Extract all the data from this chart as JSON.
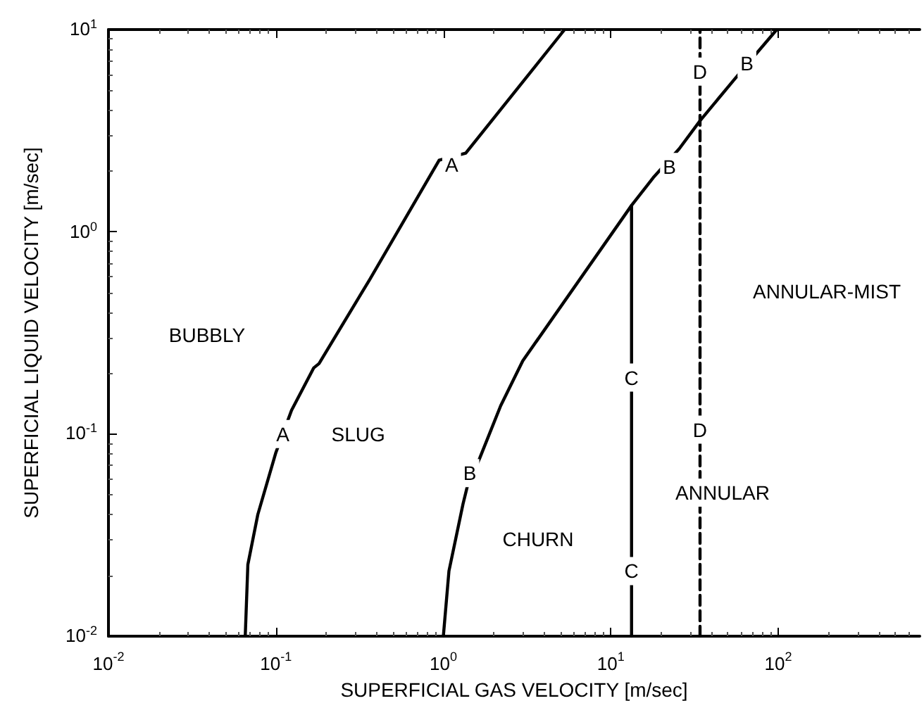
{
  "chart_data": {
    "type": "line",
    "xlabel": "SUPERFICIAL GAS VELOCITY [m/sec]",
    "ylabel": "SUPERFICIAL LIQUID VELOCITY [m/sec]",
    "log": "xy",
    "grid": false,
    "marker": "none",
    "xlim": [
      0.01,
      700
    ],
    "xticks": [
      {
        "value": 0.01,
        "label": "10$^{-2}$"
      },
      {
        "value": 0.1,
        "label": "10$^{-1}$"
      },
      {
        "value": 1,
        "label": "10$^{0}$"
      },
      {
        "value": 10,
        "label": "10$^{1}$"
      },
      {
        "value": 100,
        "label": "10$^{2}$"
      }
    ],
    "ylim": [
      0.01,
      10
    ],
    "yticks": [
      {
        "value": 0.01,
        "label": "10$^{-2}$"
      },
      {
        "value": 0.1,
        "label": "10$^{-1}$"
      },
      {
        "value": 1,
        "label": "10$^{0}$"
      },
      {
        "value": 10,
        "label": "10$^{1}$"
      }
    ],
    "series": [
      {
        "color": "#000000",
        "line_style": "solid",
        "x": [
          0.0656,
          0.068,
          0.078,
          0.1,
          0.124,
          0.168,
          0.181,
          0.363,
          0.944,
          1.36,
          5.3
        ],
        "values": [
          0.01,
          0.0226,
          0.04,
          0.081,
          0.131,
          0.212,
          0.223,
          0.58,
          2.26,
          2.45,
          10
        ]
      },
      {
        "color": "#000000",
        "line_style": "solid",
        "x": [
          1.0,
          1.08,
          1.31,
          1.39,
          1.65,
          2.2,
          2.98,
          13.3,
          18.1,
          25.6,
          34.1,
          55,
          98
        ],
        "values": [
          0.01,
          0.021,
          0.045,
          0.055,
          0.076,
          0.138,
          0.23,
          1.35,
          1.87,
          2.57,
          3.54,
          5.7,
          10
        ]
      },
      {
        "color": "#000000",
        "line_style": "solid",
        "x": [
          13.3,
          13.3
        ],
        "values": [
          0.01,
          1.35
        ]
      },
      {
        "color": "#000000",
        "line_style": "dashed",
        "x": [
          34.1,
          34.1
        ],
        "values": [
          0.01,
          10
        ]
      }
    ],
    "annotations": [
      {
        "text": "A",
        "x": 0.11,
        "y": 0.1
      },
      {
        "text": "A",
        "x": 1.12,
        "y": 2.15
      },
      {
        "text": "B",
        "x": 1.44,
        "y": 0.064
      },
      {
        "text": "B",
        "x": 22.4,
        "y": 2.09
      },
      {
        "text": "B",
        "x": 65,
        "y": 6.8
      },
      {
        "text": "C",
        "x": 13.3,
        "y": 0.19
      },
      {
        "text": "C",
        "x": 13.3,
        "y": 0.021
      },
      {
        "text": "D",
        "x": 34.1,
        "y": 6.2
      },
      {
        "text": "D",
        "x": 34.1,
        "y": 0.105
      },
      "BUBBLY",
      {
        "text": "SLUG",
        "x": 0.31,
        "y": 0.1
      },
      "CHURN",
      "ANNULAR",
      "ANNULAR-MIST"
    ]
  }
}
